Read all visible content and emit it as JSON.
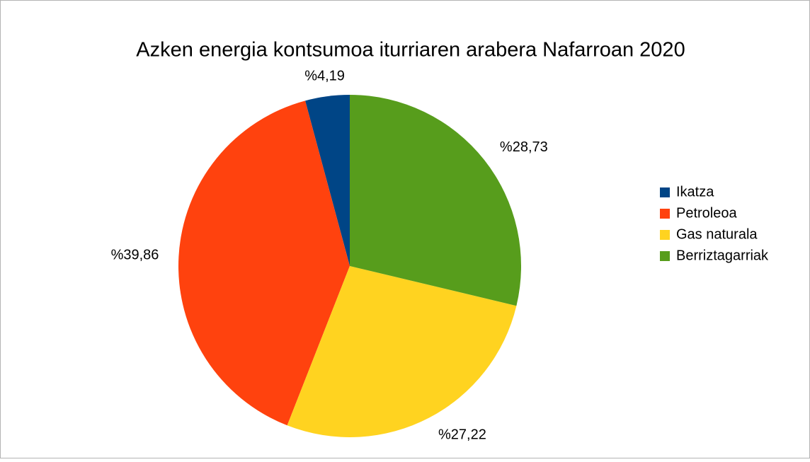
{
  "chart_data": {
    "type": "pie",
    "title": "Azken energia kontsumoa iturriaren arabera Nafarroan 2020",
    "categories": [
      "Ikatza",
      "Petroleoa",
      "Gas naturala",
      "Berriztagarriak"
    ],
    "values": [
      4.19,
      39.86,
      27.22,
      28.73
    ],
    "value_labels": [
      "%4,19",
      "%39,86",
      "%27,22",
      "%28,73"
    ],
    "colors": [
      "#004586",
      "#ff420e",
      "#ffd320",
      "#579d1c"
    ],
    "legend": "right"
  }
}
